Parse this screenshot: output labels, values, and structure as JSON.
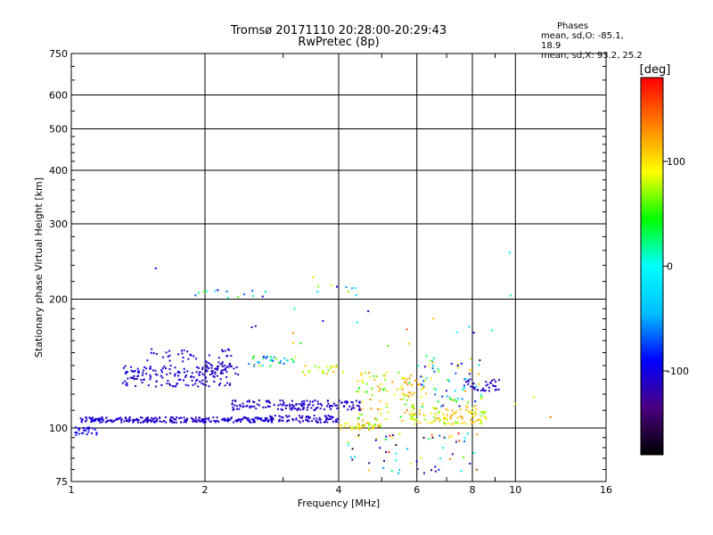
{
  "header": {
    "title_line1": "Tromsø 20171110 20:28:00-20:29:43",
    "title_line2": "RwPretec (8p)"
  },
  "phase_box": {
    "heading": "Phases",
    "line_o": "mean, sd,O: -85.1, 18.9",
    "line_x": "mean, sd,X:  93.2, 25.2"
  },
  "colorbar": {
    "label": "[deg]",
    "ticks": [
      "100",
      "0",
      "-100"
    ],
    "tick_values": [
      100,
      0,
      -100
    ],
    "range": [
      -180,
      180
    ],
    "stops": [
      "#000000",
      "#4b0082",
      "#0000ff",
      "#00bfff",
      "#00ffff",
      "#00ff00",
      "#ffff00",
      "#ff8000",
      "#ff0000"
    ]
  },
  "chart_data": {
    "type": "scatter",
    "xlabel": "Frequency [MHz]",
    "ylabel": "Stationary phase Virtual Height [km]",
    "x_scale": "log",
    "y_scale": "log",
    "xlim": [
      1,
      16
    ],
    "ylim": [
      75,
      750
    ],
    "x_ticks": [
      1,
      2,
      4,
      6,
      8,
      10,
      16
    ],
    "y_ticks": [
      75,
      100,
      200,
      300,
      400,
      500,
      600,
      750
    ],
    "grid": true,
    "clusters": [
      {
        "x": [
          1.05,
          2.85
        ],
        "y": [
          103,
          106
        ],
        "n": 260,
        "phase": [
          -120,
          -95
        ]
      },
      {
        "x": [
          1.02,
          1.15
        ],
        "y": [
          96,
          101
        ],
        "n": 25,
        "phase": [
          -115,
          -80
        ]
      },
      {
        "x": [
          1.3,
          2.3
        ],
        "y": [
          125,
          140
        ],
        "n": 150,
        "phase": [
          -120,
          -90
        ]
      },
      {
        "x": [
          2.0,
          2.4
        ],
        "y": [
          133,
          143
        ],
        "n": 40,
        "phase": [
          -120,
          -100
        ]
      },
      {
        "x": [
          1.4,
          2.3
        ],
        "y": [
          143,
          153
        ],
        "n": 35,
        "phase": [
          -115,
          -95
        ]
      },
      {
        "x": [
          2.3,
          4.5
        ],
        "y": [
          110,
          116
        ],
        "n": 150,
        "phase": [
          -120,
          -95
        ]
      },
      {
        "x": [
          2.5,
          3.2
        ],
        "y": [
          139,
          147
        ],
        "n": 35,
        "phase": [
          -100,
          90
        ]
      },
      {
        "x": [
          3.3,
          4.2
        ],
        "y": [
          133,
          140
        ],
        "n": 20,
        "phase": [
          60,
          120
        ]
      },
      {
        "x": [
          2.8,
          4.0
        ],
        "y": [
          103,
          107
        ],
        "n": 80,
        "phase": [
          -120,
          -100
        ]
      },
      {
        "x": [
          4.0,
          5.0
        ],
        "y": [
          99,
          103
        ],
        "n": 40,
        "phase": [
          60,
          130
        ]
      },
      {
        "x": [
          4.4,
          6.0
        ],
        "y": [
          104,
          135
        ],
        "n": 80,
        "phase": [
          40,
          140
        ]
      },
      {
        "x": [
          5.5,
          6.3
        ],
        "y": [
          118,
          132
        ],
        "n": 25,
        "phase": [
          80,
          130
        ]
      },
      {
        "x": [
          5.8,
          8.6
        ],
        "y": [
          102,
          112
        ],
        "n": 110,
        "phase": [
          60,
          130
        ]
      },
      {
        "x": [
          6.0,
          8.4
        ],
        "y": [
          112,
          148
        ],
        "n": 70,
        "phase": [
          -130,
          130
        ]
      },
      {
        "x": [
          7.8,
          9.2
        ],
        "y": [
          122,
          130
        ],
        "n": 35,
        "phase": [
          -120,
          -95
        ]
      },
      {
        "x": [
          4.2,
          8.2
        ],
        "y": [
          78,
          98
        ],
        "n": 65,
        "phase": [
          -180,
          180
        ]
      },
      {
        "x": [
          1.9,
          2.75
        ],
        "y": [
          201,
          210
        ],
        "n": 14,
        "phase": [
          -100,
          60
        ]
      },
      {
        "x": [
          3.5,
          4.4
        ],
        "y": [
          203,
          216
        ],
        "n": 9,
        "phase": [
          -120,
          120
        ]
      },
      {
        "x": [
          2.5,
          10.5
        ],
        "y": [
          150,
          190
        ],
        "n": 14,
        "phase": [
          -120,
          140
        ]
      }
    ],
    "points": [
      {
        "x": 1.55,
        "y": 236,
        "phase": -95
      },
      {
        "x": 9.7,
        "y": 257,
        "phase": -15
      },
      {
        "x": 9.75,
        "y": 204,
        "phase": 10
      },
      {
        "x": 3.5,
        "y": 225,
        "phase": 100
      },
      {
        "x": 2.55,
        "y": 172,
        "phase": -110
      },
      {
        "x": 2.6,
        "y": 173,
        "phase": -110
      },
      {
        "x": 12.0,
        "y": 106,
        "phase": 140
      },
      {
        "x": 11.0,
        "y": 118,
        "phase": 100
      },
      {
        "x": 10.0,
        "y": 114,
        "phase": 100
      },
      {
        "x": 5.7,
        "y": 170,
        "phase": 150
      }
    ]
  }
}
